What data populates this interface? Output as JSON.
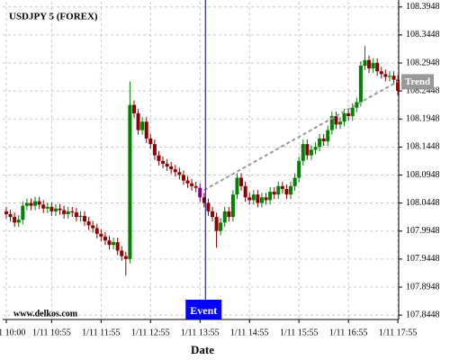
{
  "chart_data": {
    "type": "candlestick",
    "title": "USDJPY 5 (FOREX)",
    "x_label": "Date",
    "watermark": "www.delkos.com",
    "up_color": "#008000",
    "down_color": "#8b0000",
    "event_candle_color": "#800080",
    "grid": true,
    "event": {
      "label": "Event",
      "color": "#0000ff"
    },
    "trend": {
      "label": "Trend",
      "from": 108.068,
      "to": 108.262,
      "color": "#999999"
    },
    "ylim": [
      107.837,
      108.404
    ],
    "yticks": [
      107.8448,
      107.8948,
      107.9448,
      107.9948,
      108.0448,
      108.0948,
      108.1448,
      108.1948,
      108.2448,
      108.2948,
      108.3448,
      108.3948
    ],
    "categories": [
      "1/11 10:00",
      null,
      null,
      null,
      null,
      null,
      null,
      null,
      null,
      null,
      null,
      "1/11 10:55",
      null,
      null,
      null,
      null,
      null,
      null,
      null,
      null,
      null,
      null,
      null,
      "1/11 11:55",
      null,
      null,
      null,
      null,
      null,
      null,
      null,
      null,
      null,
      null,
      null,
      "1/11 12:55",
      null,
      null,
      null,
      null,
      null,
      null,
      null,
      null,
      null,
      null,
      null,
      "1/11 13:55",
      null,
      null,
      null,
      null,
      null,
      null,
      null,
      null,
      null,
      null,
      null,
      "1/11 14:55",
      null,
      null,
      null,
      null,
      null,
      null,
      null,
      null,
      null,
      null,
      null,
      "1/11 15:55",
      null,
      null,
      null,
      null,
      null,
      null,
      null,
      null,
      null,
      null,
      null,
      "1/11 16:55",
      null,
      null,
      null,
      null,
      null,
      null,
      null,
      null,
      null,
      null,
      null,
      "1/11 17:55"
    ],
    "open": [
      108.03,
      108.025,
      108.02,
      108.01,
      108.015,
      108.04,
      108.045,
      108.04,
      108.048,
      108.042,
      108.035,
      108.038,
      108.03,
      108.035,
      108.032,
      108.025,
      108.03,
      108.028,
      108.02,
      108.022,
      108.012,
      108.005,
      108.0,
      107.99,
      107.985,
      107.978,
      107.97,
      107.975,
      107.96,
      107.95,
      107.945,
      108.22,
      108.205,
      108.175,
      108.19,
      108.16,
      108.15,
      108.13,
      108.12,
      108.115,
      108.11,
      108.105,
      108.1,
      108.095,
      108.085,
      108.08,
      108.075,
      108.072,
      108.055,
      108.045,
      108.03,
      108.02,
      107.995,
      108.01,
      108.03,
      108.02,
      108.06,
      108.09,
      108.075,
      108.055,
      108.05,
      108.06,
      108.045,
      108.055,
      108.05,
      108.065,
      108.06,
      108.075,
      108.07,
      108.06,
      108.075,
      108.09,
      108.12,
      108.15,
      108.13,
      108.14,
      108.145,
      108.16,
      108.155,
      108.175,
      108.2,
      108.185,
      108.19,
      108.205,
      108.2,
      108.215,
      108.225,
      108.29,
      108.3,
      108.285,
      108.295,
      108.28,
      108.275,
      108.27,
      108.272,
      108.265
    ],
    "high": [
      108.038,
      108.033,
      108.028,
      108.023,
      108.048,
      108.053,
      108.053,
      108.056,
      108.056,
      108.05,
      108.046,
      108.046,
      108.043,
      108.043,
      108.04,
      108.038,
      108.038,
      108.036,
      108.03,
      108.03,
      108.02,
      108.013,
      108.008,
      107.998,
      107.993,
      107.986,
      107.983,
      107.983,
      107.968,
      107.958,
      108.262,
      108.228,
      108.213,
      108.198,
      108.198,
      108.168,
      108.158,
      108.138,
      108.128,
      108.123,
      108.118,
      108.113,
      108.108,
      108.103,
      108.093,
      108.088,
      108.083,
      108.08,
      108.063,
      108.053,
      108.038,
      108.028,
      108.018,
      108.038,
      108.038,
      108.068,
      108.098,
      108.098,
      108.083,
      108.063,
      108.068,
      108.068,
      108.063,
      108.063,
      108.073,
      108.073,
      108.083,
      108.083,
      108.078,
      108.083,
      108.098,
      108.128,
      108.158,
      108.158,
      108.148,
      108.153,
      108.168,
      108.168,
      108.183,
      108.208,
      108.208,
      108.198,
      108.213,
      108.213,
      108.223,
      108.233,
      108.298,
      108.325,
      108.308,
      108.303,
      108.303,
      108.288,
      108.283,
      108.28,
      108.28,
      108.273
    ],
    "low": [
      108.017,
      108.012,
      108.002,
      108.002,
      108.007,
      108.032,
      108.032,
      108.032,
      108.034,
      108.027,
      108.027,
      108.022,
      108.022,
      108.024,
      108.017,
      108.017,
      108.02,
      108.012,
      108.012,
      108.004,
      107.997,
      107.992,
      107.982,
      107.977,
      107.97,
      107.962,
      107.962,
      107.952,
      107.942,
      107.915,
      107.937,
      108.197,
      108.167,
      108.167,
      108.152,
      108.142,
      108.122,
      108.112,
      108.107,
      108.102,
      108.097,
      108.092,
      108.087,
      108.077,
      108.072,
      108.067,
      108.064,
      108.047,
      108.037,
      108.022,
      108.012,
      107.965,
      107.987,
      108.002,
      108.012,
      108.012,
      108.052,
      108.067,
      108.047,
      108.042,
      108.042,
      108.037,
      108.037,
      108.042,
      108.042,
      108.052,
      108.052,
      108.062,
      108.052,
      108.052,
      108.067,
      108.082,
      108.112,
      108.122,
      108.122,
      108.132,
      108.137,
      108.147,
      108.147,
      108.167,
      108.177,
      108.177,
      108.182,
      108.192,
      108.192,
      108.207,
      108.217,
      108.282,
      108.277,
      108.277,
      108.272,
      108.267,
      108.262,
      108.262,
      108.257,
      108.237
    ],
    "close": [
      108.025,
      108.02,
      108.01,
      108.015,
      108.04,
      108.045,
      108.04,
      108.048,
      108.042,
      108.035,
      108.038,
      108.03,
      108.035,
      108.032,
      108.025,
      108.03,
      108.028,
      108.02,
      108.022,
      108.012,
      108.005,
      108.0,
      107.99,
      107.985,
      107.978,
      107.97,
      107.975,
      107.96,
      107.95,
      107.945,
      108.22,
      108.205,
      108.175,
      108.19,
      108.16,
      108.15,
      108.13,
      108.12,
      108.115,
      108.11,
      108.105,
      108.1,
      108.095,
      108.085,
      108.08,
      108.075,
      108.072,
      108.055,
      108.045,
      108.03,
      108.02,
      107.995,
      108.01,
      108.03,
      108.02,
      108.06,
      108.09,
      108.075,
      108.055,
      108.05,
      108.06,
      108.045,
      108.055,
      108.05,
      108.065,
      108.06,
      108.075,
      108.07,
      108.06,
      108.075,
      108.09,
      108.12,
      108.15,
      108.13,
      108.14,
      108.145,
      108.16,
      108.155,
      108.175,
      108.2,
      108.185,
      108.19,
      108.205,
      108.2,
      108.215,
      108.225,
      108.29,
      108.3,
      108.285,
      108.295,
      108.28,
      108.275,
      108.27,
      108.272,
      108.265,
      108.245
    ]
  }
}
